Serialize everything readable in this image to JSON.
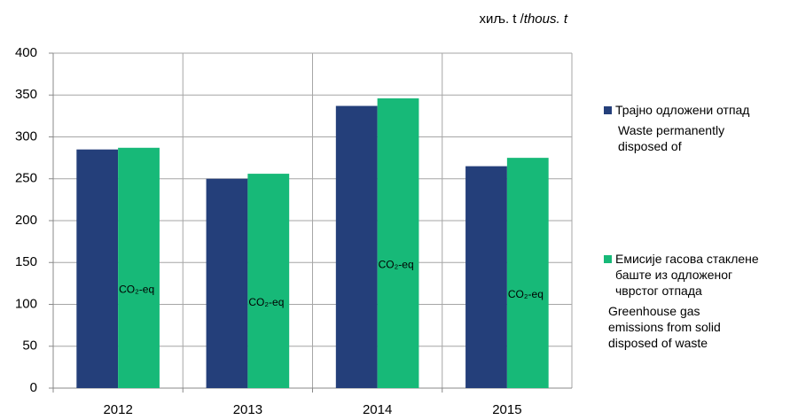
{
  "chart_data": {
    "type": "bar",
    "unit_label": "хиљ. t /",
    "unit_label_italic": "thous. t",
    "categories": [
      "2012",
      "2013",
      "2014",
      "2015"
    ],
    "series": [
      {
        "name": "Трајно одложени отпад",
        "name_en": "Waste permanently disposed of",
        "color": "#243f7a",
        "values": [
          285,
          250,
          337,
          265
        ]
      },
      {
        "name": "Емисије гасова стаклене баште из одложеног чврстог отпада",
        "name_en": "Greenhouse gas emissions from solid disposed of waste",
        "color": "#17b978",
        "values": [
          287,
          256,
          346,
          275
        ]
      }
    ],
    "annotations": [
      "CO₂-eq",
      "CO₂-eq",
      "CO₂-eq",
      "CO₂-eq"
    ],
    "ylim": [
      0,
      400
    ],
    "yticks": [
      0,
      50,
      100,
      150,
      200,
      250,
      300,
      350,
      400
    ],
    "grid": true
  }
}
